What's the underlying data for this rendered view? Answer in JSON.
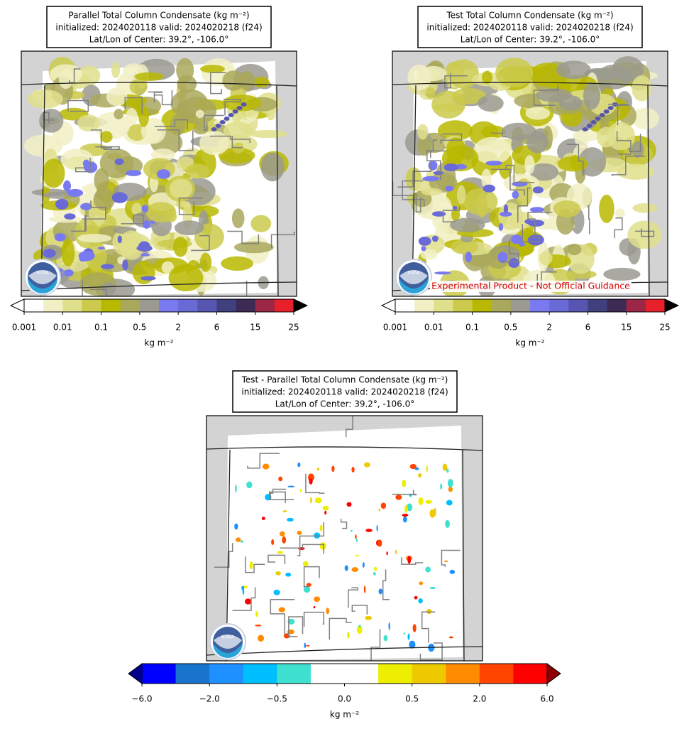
{
  "panels": [
    {
      "title": [
        "Parallel Total Column Condensate (kg m⁻²)",
        "initialized: 2024020118 valid: 2024020218 (f24)",
        "Lat/Lon of Center: 39.2°, -106.0°"
      ],
      "colorbar": {
        "ticks": [
          "0.001",
          "0.01",
          "0.1",
          "0.5",
          "2",
          "6",
          "15",
          "25"
        ],
        "label": "kg m⁻²",
        "colors": [
          "#ffffff",
          "#f1f0c4",
          "#e0df8c",
          "#cbca4c",
          "#b8b800",
          "#a9a85c",
          "#9a9a90",
          "#7a7af0",
          "#6a6ad6",
          "#5656b0",
          "#40407f",
          "#3d2a55",
          "#9c2646",
          "#e8202b"
        ],
        "under": "#ffffff",
        "over": "#000000"
      },
      "logo_text": "NOAA"
    },
    {
      "title": [
        "Test Total Column Condensate (kg m⁻²)",
        "initialized: 2024020118 valid: 2024020218 (f24)",
        "Lat/Lon of Center: 39.2°, -106.0°"
      ],
      "colorbar": {
        "ticks": [
          "0.001",
          "0.01",
          "0.1",
          "0.5",
          "2",
          "6",
          "15",
          "25"
        ],
        "label": "kg m⁻²",
        "colors": [
          "#ffffff",
          "#f1f0c4",
          "#e0df8c",
          "#cbca4c",
          "#b8b800",
          "#a9a85c",
          "#9a9a90",
          "#7a7af0",
          "#6a6ad6",
          "#5656b0",
          "#40407f",
          "#3d2a55",
          "#9c2646",
          "#e8202b"
        ],
        "under": "#ffffff",
        "over": "#000000"
      },
      "logo_text": "NOAA",
      "banner": "Experimental Product - Not Official Guidance"
    },
    {
      "title": [
        "Test - Parallel Total Column Condensate (kg m⁻²)",
        "initialized: 2024020118 valid: 2024020218 (f24)",
        "Lat/Lon of Center: 39.2°, -106.0°"
      ],
      "colorbar": {
        "ticks": [
          "−6.0",
          "−2.0",
          "−0.5",
          "0.0",
          "0.5",
          "2.0",
          "6.0"
        ],
        "label": "kg m⁻²",
        "colors": [
          "#0000ff",
          "#1874cd",
          "#1e90ff",
          "#00bfff",
          "#40e0d0",
          "#ffffff",
          "#ffffff",
          "#eeee00",
          "#eec900",
          "#ff8c00",
          "#ff4500",
          "#ff0000"
        ],
        "under": "#00008b",
        "over": "#8b0000"
      },
      "logo_text": "NOAA"
    }
  ]
}
